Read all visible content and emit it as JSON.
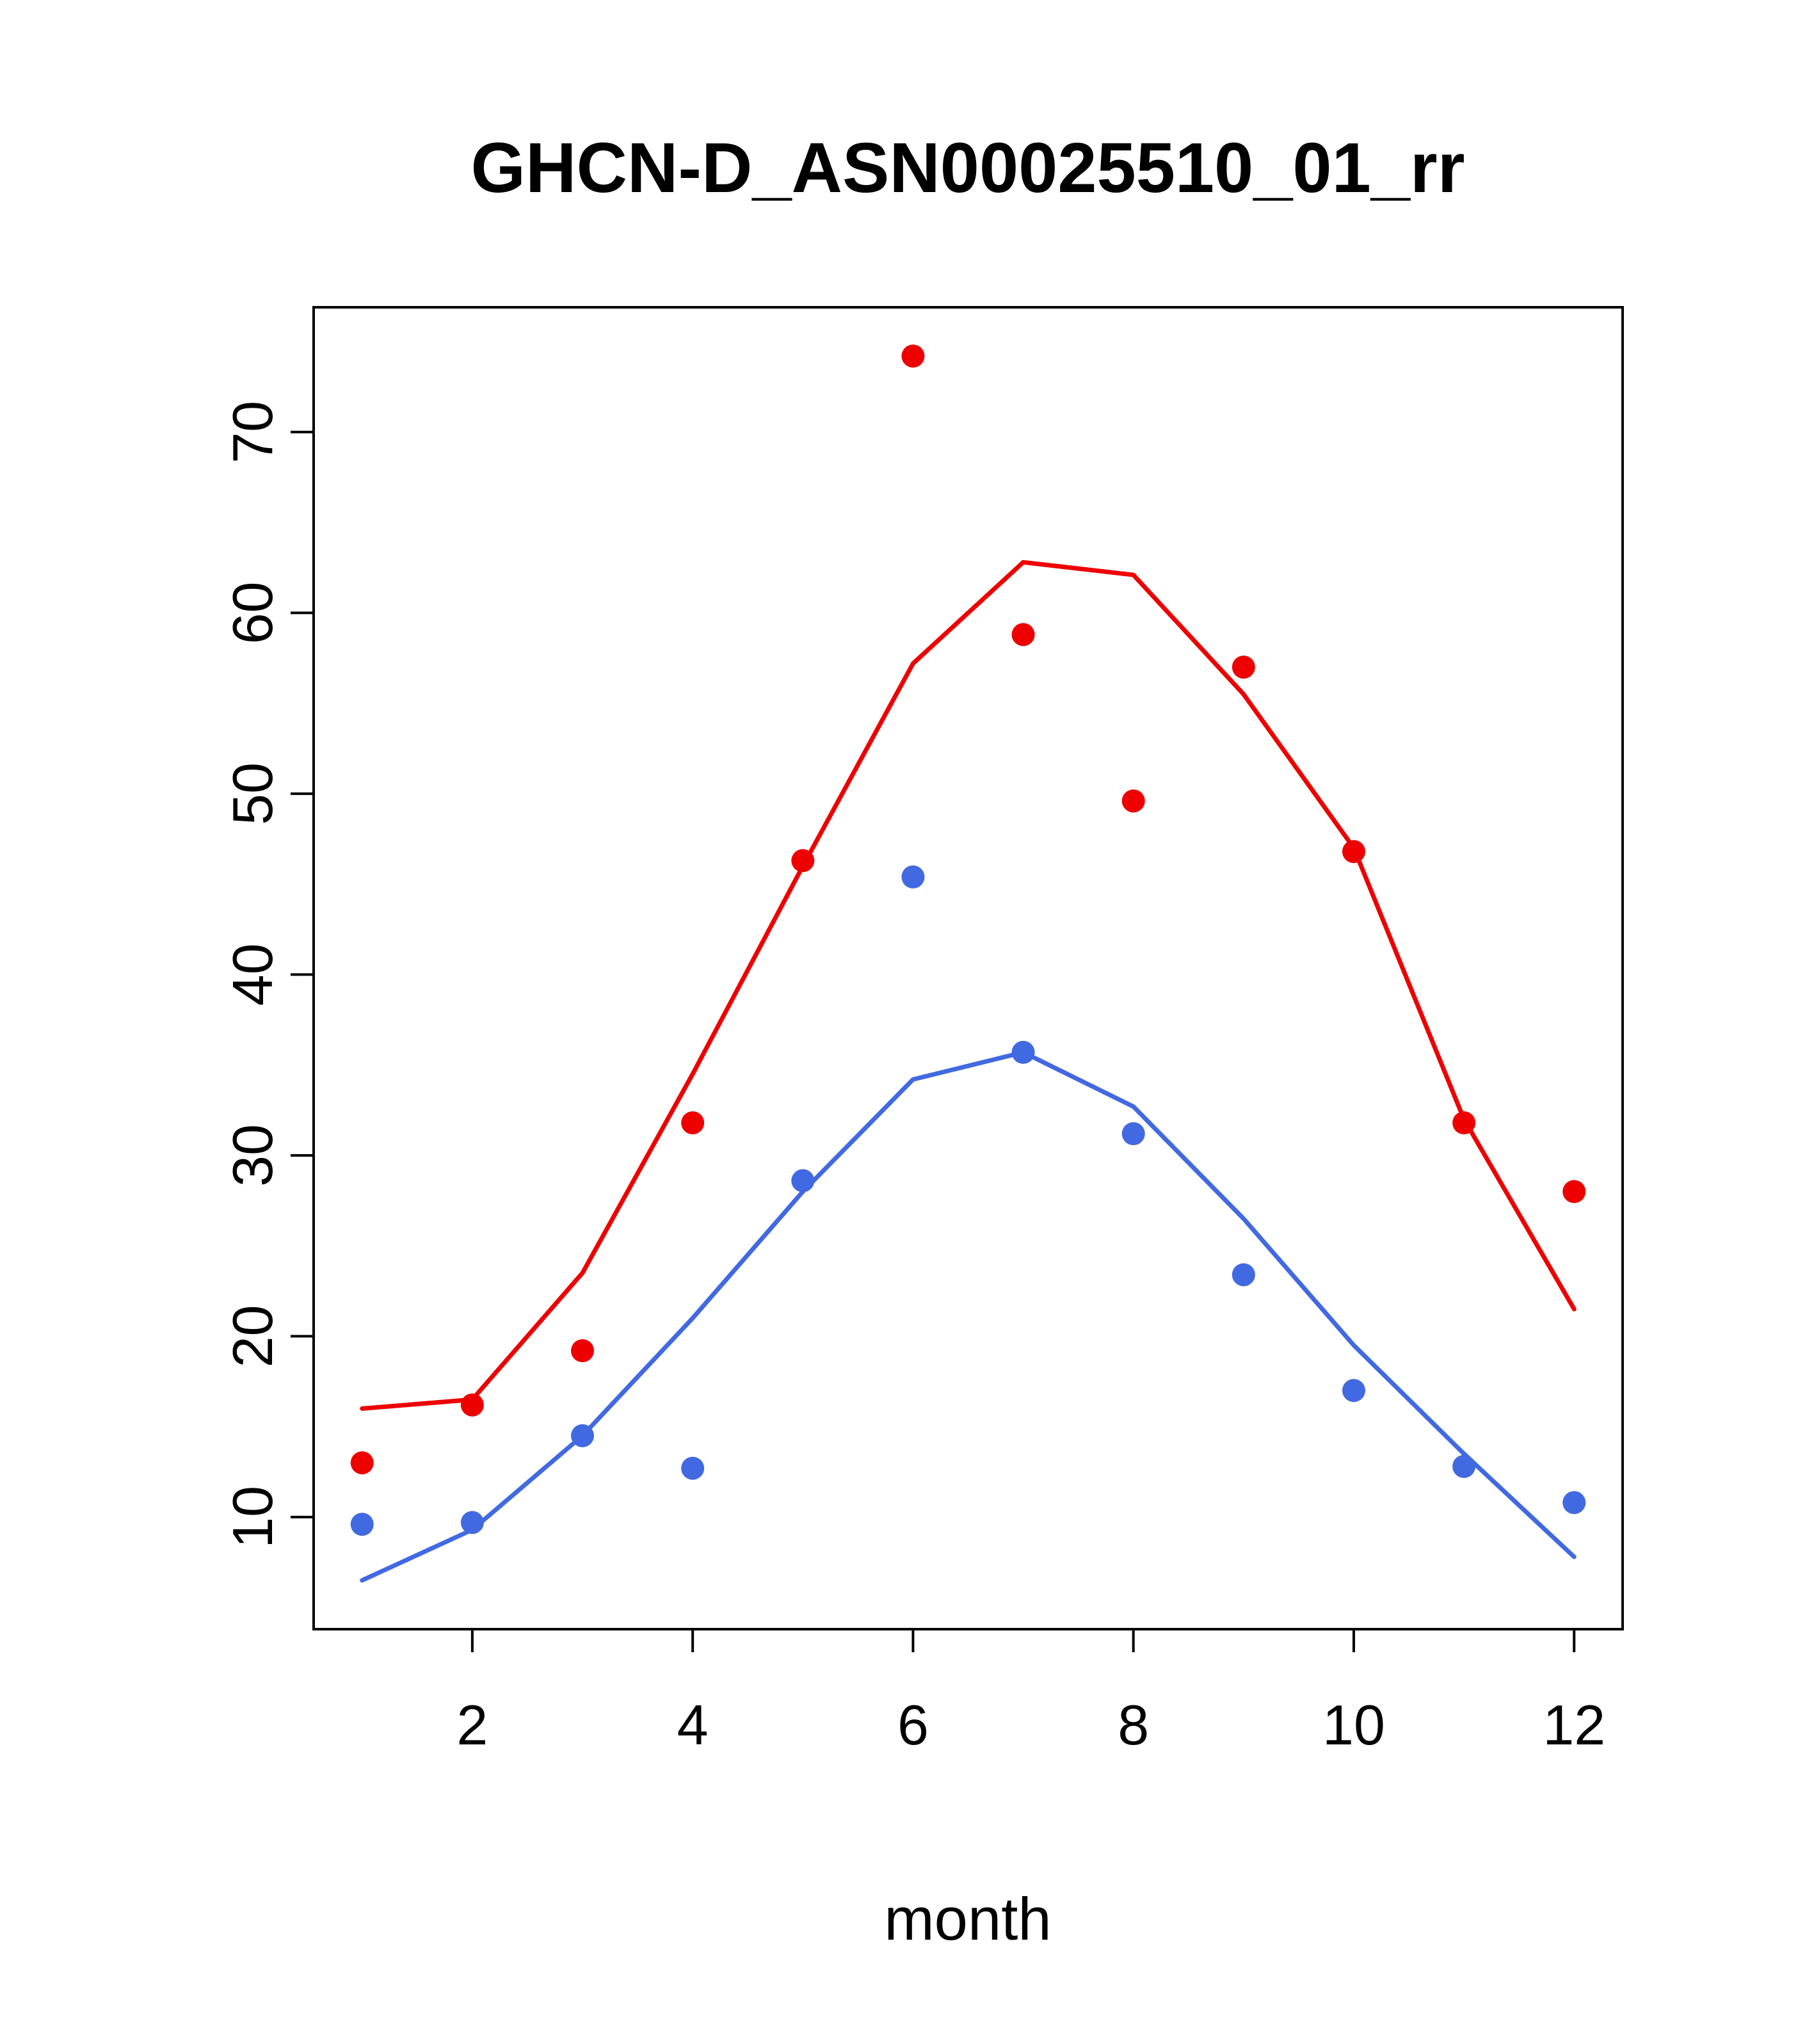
{
  "chart_data": {
    "type": "line",
    "title": "GHCN-D_ASN00025510_01_rr",
    "xlabel": "month",
    "ylabel": "",
    "x": [
      1,
      2,
      3,
      4,
      5,
      6,
      7,
      8,
      9,
      10,
      11,
      12
    ],
    "x_ticks": [
      2,
      4,
      6,
      8,
      10,
      12
    ],
    "y_ticks": [
      10,
      20,
      30,
      40,
      50,
      60,
      70
    ],
    "xlim": [
      0.56,
      12.44
    ],
    "ylim": [
      3.8,
      76.9
    ],
    "grid": false,
    "legend": "none",
    "colors": {
      "red": "#ee0000",
      "blue": "#4169e1",
      "axis": "#000000"
    },
    "series": [
      {
        "name": "red-line",
        "role": "line",
        "color": "#ee0000",
        "values": [
          16.0,
          16.5,
          23.5,
          34.5,
          46.0,
          57.2,
          62.8,
          62.1,
          55.5,
          47.0,
          32.0,
          21.5
        ]
      },
      {
        "name": "blue-line",
        "role": "line",
        "color": "#4169e1",
        "values": [
          6.5,
          9.3,
          14.5,
          21.0,
          28.0,
          34.2,
          35.7,
          32.7,
          26.5,
          19.5,
          13.5,
          7.8
        ]
      },
      {
        "name": "red-points",
        "role": "scatter",
        "color": "#ee0000",
        "values": [
          13.0,
          16.2,
          19.2,
          31.8,
          46.3,
          74.2,
          58.8,
          49.6,
          57.0,
          46.8,
          31.8,
          28.0
        ]
      },
      {
        "name": "blue-points",
        "role": "scatter",
        "color": "#4169e1",
        "values": [
          9.6,
          9.7,
          14.5,
          12.7,
          28.6,
          45.4,
          35.7,
          31.2,
          23.4,
          17.0,
          12.8,
          10.8
        ]
      }
    ]
  }
}
